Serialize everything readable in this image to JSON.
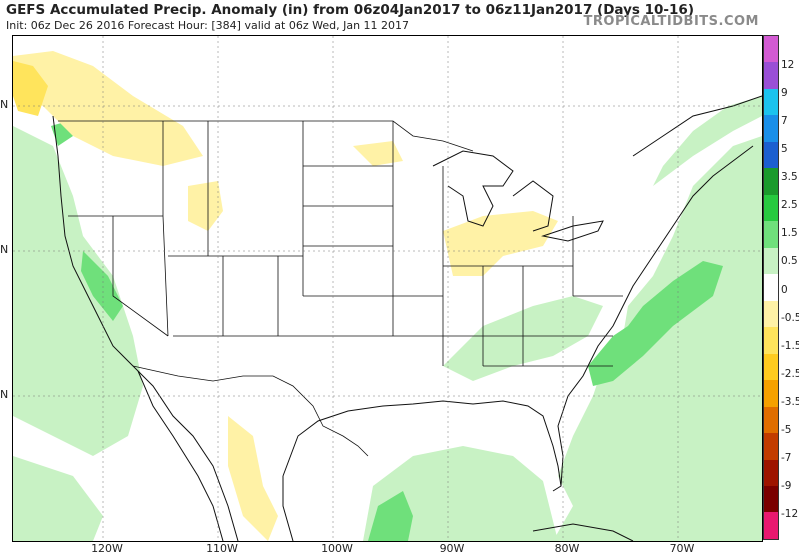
{
  "header": {
    "title": "GEFS Accumulated Precip. Anomaly (in) from 06z04Jan2017 to 06z11Jan2017 (Days 10-16)",
    "subtitle": "Init: 06z Dec 26 2016   Forecast Hour: [384]   valid at 06z Wed, Jan 11 2017",
    "brand": "TROPICALTIDBITS.COM"
  },
  "axes": {
    "lat_labels": [
      "N",
      "N",
      "N"
    ],
    "lon_labels": [
      "120W",
      "110W",
      "100W",
      "90W",
      "80W",
      "70W"
    ]
  },
  "colorbar": {
    "labels": [
      "12",
      "9",
      "7",
      "5",
      "3.5",
      "2.5",
      "1.5",
      "0.5",
      "0",
      "-0.5",
      "-1.5",
      "-2.5",
      "-3.5",
      "-5",
      "-7",
      "-9",
      "-12"
    ],
    "colors": [
      "#d35bd3",
      "#9a4fd6",
      "#1cc3ee",
      "#1a8fe8",
      "#1c5fd0",
      "#1b9a2c",
      "#27c93f",
      "#6fe07b",
      "#c8f2c4",
      "#ffffff",
      "#fff2a6",
      "#ffe45c",
      "#ffcc1f",
      "#f5a100",
      "#e06e00",
      "#c23c00",
      "#9e1400",
      "#7a0000",
      "#e8196f"
    ]
  }
}
